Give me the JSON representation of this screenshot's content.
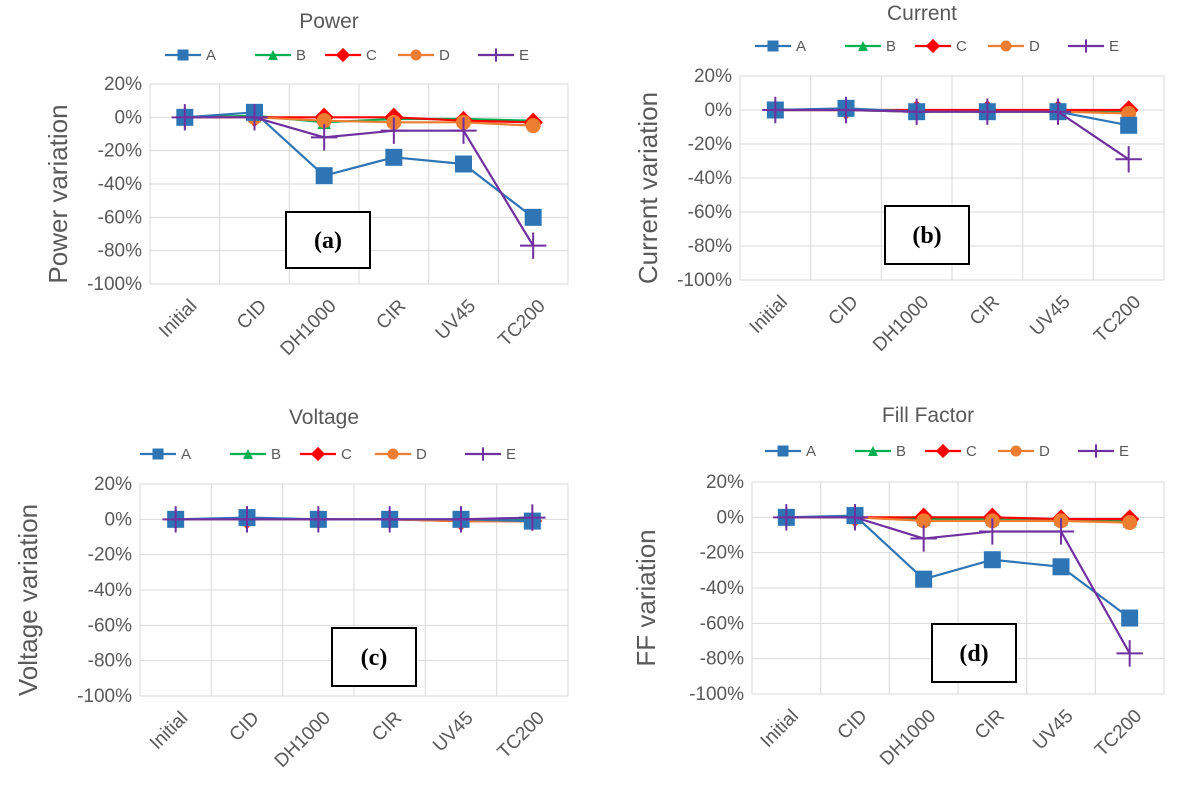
{
  "chart_data": [
    {
      "type": "line",
      "title": "Power",
      "ylabel": "Power variation",
      "tag": "(a)",
      "categories": [
        "Initial",
        "CID",
        "DH1000",
        "CIR",
        "UV45",
        "TC200"
      ],
      "yticks": [
        "20%",
        "0%",
        "-20%",
        "-40%",
        "-60%",
        "-80%",
        "-100%"
      ],
      "ylim": [
        -100,
        20
      ],
      "series": [
        {
          "name": "A",
          "values": [
            0,
            3,
            -35,
            -24,
            -28,
            -60
          ]
        },
        {
          "name": "B",
          "values": [
            0,
            1,
            -3,
            -1,
            -1,
            -2
          ]
        },
        {
          "name": "C",
          "values": [
            0,
            0,
            0,
            0,
            -2,
            -3
          ]
        },
        {
          "name": "D",
          "values": [
            0,
            0,
            -2,
            -3,
            -3,
            -5
          ]
        },
        {
          "name": "E",
          "values": [
            0,
            0,
            -12,
            -8,
            -8,
            -77
          ]
        }
      ]
    },
    {
      "type": "line",
      "title": "Current",
      "ylabel": "Current variation",
      "tag": "(b)",
      "categories": [
        "Initial",
        "CID",
        "DH1000",
        "CIR",
        "UV45",
        "TC200"
      ],
      "yticks": [
        "20%",
        "0%",
        "-20%",
        "-40%",
        "-60%",
        "-80%",
        "-100%"
      ],
      "ylim": [
        -100,
        20
      ],
      "series": [
        {
          "name": "A",
          "values": [
            0,
            1,
            -1,
            -1,
            -1,
            -9
          ]
        },
        {
          "name": "B",
          "values": [
            0,
            0,
            -1,
            -1,
            -1,
            -1
          ]
        },
        {
          "name": "C",
          "values": [
            0,
            0,
            0,
            0,
            0,
            0
          ]
        },
        {
          "name": "D",
          "values": [
            0,
            0,
            -1,
            -1,
            -1,
            -2
          ]
        },
        {
          "name": "E",
          "values": [
            0,
            0,
            -1,
            -1,
            -1,
            -29
          ]
        }
      ]
    },
    {
      "type": "line",
      "title": "Voltage",
      "ylabel": "Voltage variation",
      "tag": "(c)",
      "categories": [
        "Initial",
        "CID",
        "DH1000",
        "CIR",
        "UV45",
        "TC200"
      ],
      "yticks": [
        "20%",
        "0%",
        "-20%",
        "-40%",
        "-60%",
        "-80%",
        "-100%"
      ],
      "ylim": [
        -100,
        20
      ],
      "series": [
        {
          "name": "A",
          "values": [
            0,
            1,
            0,
            0,
            0,
            -1
          ]
        },
        {
          "name": "B",
          "values": [
            0,
            0,
            0,
            0,
            0,
            0
          ]
        },
        {
          "name": "C",
          "values": [
            0,
            0,
            0,
            0,
            -1,
            -1
          ]
        },
        {
          "name": "D",
          "values": [
            0,
            0,
            0,
            0,
            -1,
            -1
          ]
        },
        {
          "name": "E",
          "values": [
            0,
            0,
            0,
            0,
            0,
            1
          ]
        }
      ]
    },
    {
      "type": "line",
      "title": "Fill Factor",
      "ylabel": "FF variation",
      "tag": "(d)",
      "categories": [
        "Initial",
        "CID",
        "DH1000",
        "CIR",
        "UV45",
        "TC200"
      ],
      "yticks": [
        "20%",
        "0%",
        "-20%",
        "-40%",
        "-60%",
        "-80%",
        "-100%"
      ],
      "ylim": [
        -100,
        20
      ],
      "series": [
        {
          "name": "A",
          "values": [
            0,
            1,
            -35,
            -24,
            -28,
            -57
          ]
        },
        {
          "name": "B",
          "values": [
            0,
            0,
            -1,
            -1,
            -1,
            -2
          ]
        },
        {
          "name": "C",
          "values": [
            0,
            0,
            0,
            0,
            -1,
            -1
          ]
        },
        {
          "name": "D",
          "values": [
            0,
            0,
            -2,
            -2,
            -2,
            -3
          ]
        },
        {
          "name": "E",
          "values": [
            0,
            0,
            -12,
            -8,
            -8,
            -77
          ]
        }
      ]
    }
  ],
  "series_styles": {
    "A": {
      "color": "#2E75B6",
      "marker": "square"
    },
    "B": {
      "color": "#00B050",
      "marker": "triangle"
    },
    "C": {
      "color": "#FF0000",
      "marker": "diamond"
    },
    "D": {
      "color": "#ED7D31",
      "marker": "circle"
    },
    "E": {
      "color": "#7030A0",
      "marker": "plus"
    }
  }
}
